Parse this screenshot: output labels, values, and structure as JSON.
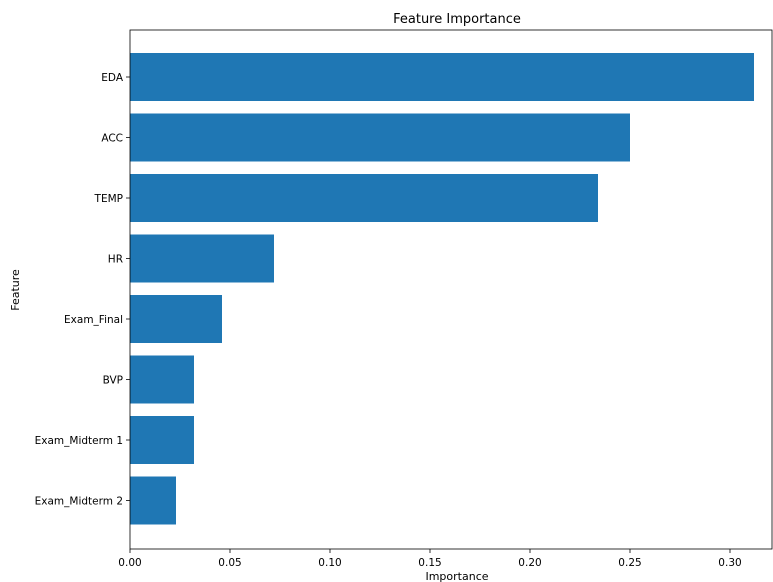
{
  "chart_data": {
    "type": "bar",
    "orientation": "horizontal",
    "title": "Feature Importance",
    "xlabel": "Importance",
    "ylabel": "Feature",
    "categories": [
      "EDA",
      "ACC",
      "TEMP",
      "HR",
      "Exam_Final",
      "BVP",
      "Exam_Midterm 1",
      "Exam_Midterm 2"
    ],
    "values": [
      0.312,
      0.25,
      0.234,
      0.072,
      0.046,
      0.032,
      0.032,
      0.023
    ],
    "xlim": [
      0.0,
      0.321
    ],
    "xticks": [
      "0.00",
      "0.05",
      "0.10",
      "0.15",
      "0.20",
      "0.25",
      "0.30"
    ],
    "xtick_values": [
      0.0,
      0.05,
      0.1,
      0.15,
      0.2,
      0.25,
      0.3
    ],
    "grid": false,
    "bar_color": "#1f77b4"
  }
}
